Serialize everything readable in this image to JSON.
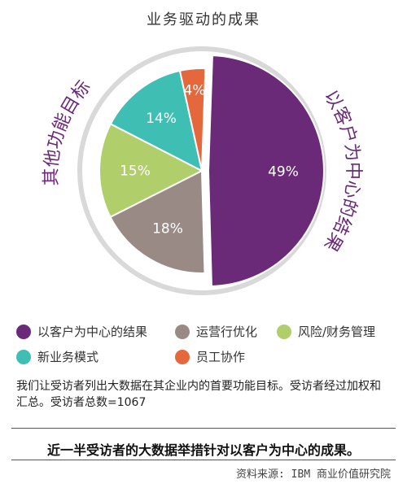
{
  "title": "业务驱动的成果",
  "chart_data": {
    "type": "pie",
    "slices": [
      {
        "label": "以客户为中心的结果",
        "value": 49,
        "display": "49%",
        "color": "#6B2A78"
      },
      {
        "label": "运营行优化",
        "value": 18,
        "display": "18%",
        "color": "#9A8A86"
      },
      {
        "label": "风险/财务管理",
        "value": 15,
        "display": "15%",
        "color": "#B0CF6A"
      },
      {
        "label": "新业务模式",
        "value": 14,
        "display": "14%",
        "color": "#3FBFB4"
      },
      {
        "label": "员工协作",
        "value": 4,
        "display": "4%",
        "color": "#E4683C"
      }
    ],
    "arc_labels": {
      "left": "其他功能目标",
      "right": "以客户为中心的结果"
    }
  },
  "legend": [
    {
      "label": "以客户为中心的结果",
      "color": "#6B2A78"
    },
    {
      "label": "运营行优化",
      "color": "#9A8A86"
    },
    {
      "label": "风险/财务管理",
      "color": "#B0CF6A"
    },
    {
      "label": "新业务模式",
      "color": "#3FBFB4"
    },
    {
      "label": "员工协作",
      "color": "#E4683C"
    }
  ],
  "footnote": "我们让受访者列出大数据在其企业内的首要功能目标。受访者经过加权和汇总。受访者总数=1067",
  "conclusion": "近一半受访者的大数据举措针对以客户为中心的成果。",
  "source": "资料来源: IBM 商业价值研究院"
}
